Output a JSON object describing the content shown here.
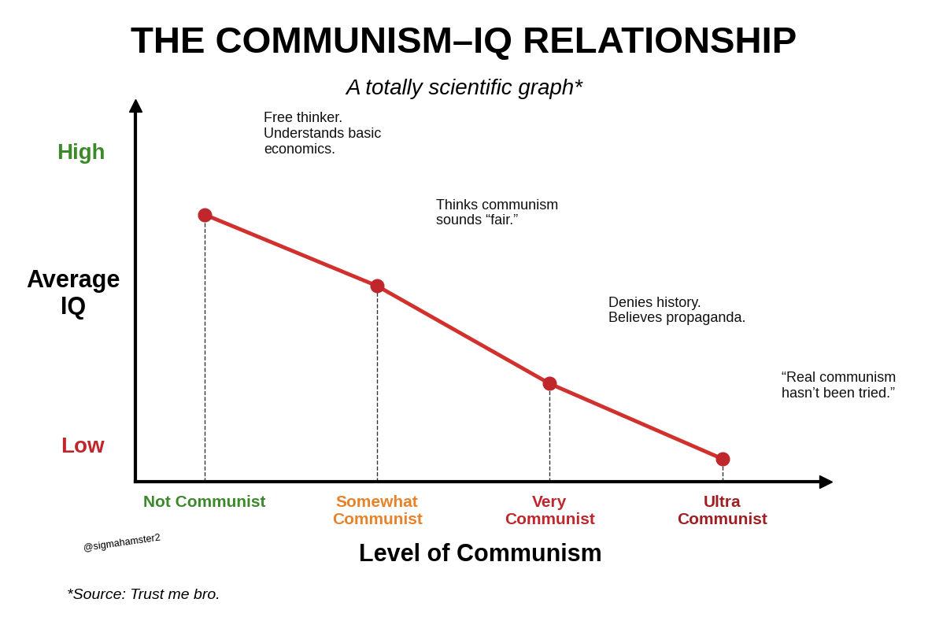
{
  "chart_data": {
    "type": "line",
    "title": "THE COMMUNISM–IQ RELATIONSHIP",
    "subtitle": "A totally scientific graph*",
    "x_label": "Level of Communism",
    "y_label": "Average\nIQ",
    "categories": [
      "Not Communist",
      "Somewhat\nCommunist",
      "Very\nCommunist",
      "Ultra\nCommunist"
    ],
    "values": [
      71,
      52,
      26,
      6
    ],
    "annotations": [
      "Free thinker.\nUnderstands basic\neconomics.",
      "Thinks communism\nsounds “fair.”",
      "Denies history.\nBelieves propaganda.",
      "“Real communism\nhasn’t been tried.”"
    ],
    "ylim": [
      0,
      100
    ],
    "yticks": [
      {
        "value": 10,
        "label": "Low"
      },
      {
        "value": 88,
        "label": "High"
      }
    ],
    "color": "#d0312d",
    "marker": "o",
    "line_style": "solid",
    "grid": false,
    "source": "*Source: Trust me bro.",
    "watermark": "@sigmahamster2"
  }
}
